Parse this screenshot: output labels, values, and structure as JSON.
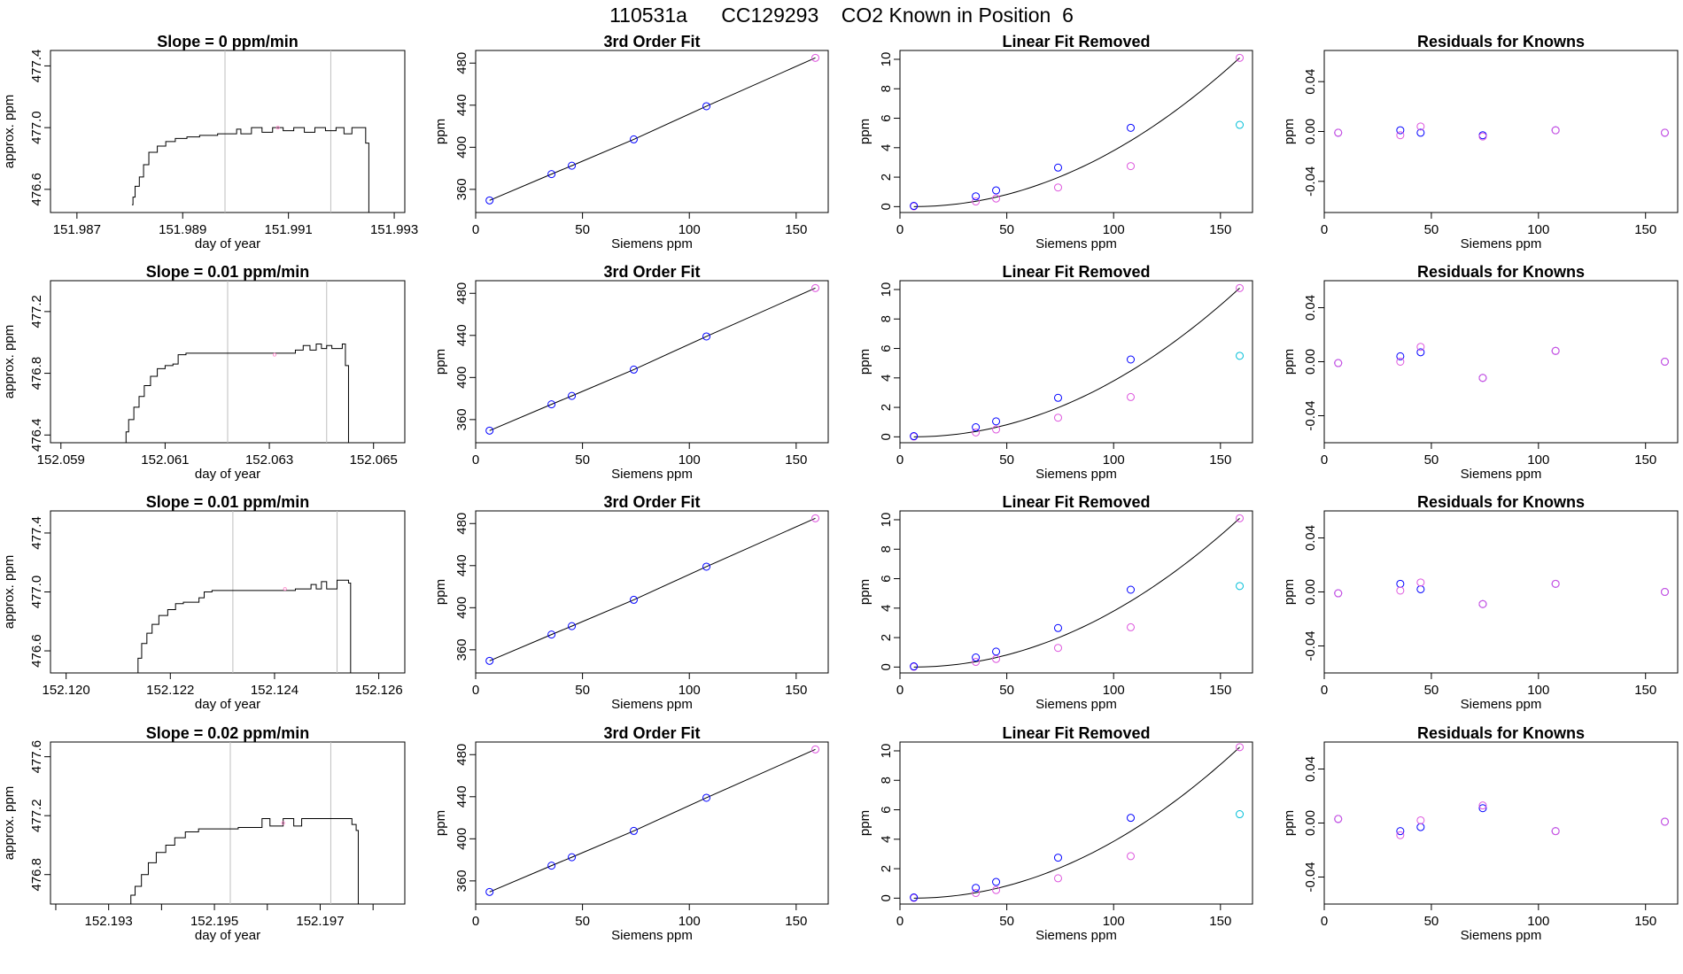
{
  "page_title": "110531a      CC129293    CO2 Known in Position  6",
  "colors": {
    "trace": "#000000",
    "vline": "#bebebe",
    "fit_line": "#000000",
    "blue": "#0000ff",
    "magenta": "#dd55dd",
    "cyan": "#00bfd8",
    "pink": "#ff88cc",
    "purple": "#8a2be2"
  },
  "chart_data": [
    {
      "type": "line",
      "panel": "time",
      "title": "Slope =  0  ppm/min",
      "xlabel": "day of year",
      "ylabel": "approx. ppm",
      "xlim": [
        151.9865,
        151.9932
      ],
      "ylim": [
        476.45,
        477.5
      ],
      "xticks": [
        151.987,
        151.989,
        151.991,
        151.993
      ],
      "xtick_labels": [
        "151.987",
        "151.989",
        "151.991",
        "151.993"
      ],
      "yticks": [
        476.6,
        477.0,
        477.4
      ],
      "ytick_labels": [
        "476.6",
        "477.0",
        "477.4"
      ],
      "vlines": [
        151.9898,
        151.9918
      ],
      "marker": [
        151.9908,
        477.0
      ],
      "x": [
        151.98804,
        151.98806,
        151.9881,
        151.98818,
        151.98826,
        151.98836,
        151.98852,
        151.98868,
        151.98886,
        151.98908,
        151.98932,
        151.98966,
        151.99002,
        151.9901,
        151.9903,
        151.9905,
        151.9907,
        151.9909,
        151.9911,
        151.9913,
        151.9915,
        151.9917,
        151.9919,
        151.99205,
        151.9922,
        151.99235,
        151.99246,
        151.99252
      ],
      "y": [
        476.5,
        476.55,
        476.62,
        476.68,
        476.76,
        476.84,
        476.88,
        476.91,
        476.93,
        476.94,
        476.95,
        476.96,
        476.99,
        476.96,
        477.0,
        476.97,
        477.0,
        476.98,
        477.0,
        476.97,
        477.0,
        476.98,
        477.0,
        476.96,
        477.0,
        477.0,
        476.9,
        476.45
      ]
    },
    {
      "type": "line",
      "panel": "time",
      "title": "Slope =  0.01  ppm/min",
      "xlabel": "day of year",
      "ylabel": "approx. ppm",
      "xlim": [
        152.0588,
        152.0656
      ],
      "ylim": [
        476.35,
        477.4
      ],
      "xticks": [
        152.059,
        152.061,
        152.063,
        152.065
      ],
      "xtick_labels": [
        "152.059",
        "152.061",
        "152.063",
        "152.065"
      ],
      "yticks": [
        476.4,
        476.8,
        477.2
      ],
      "ytick_labels": [
        "476.4",
        "476.8",
        "477.2"
      ],
      "vlines": [
        152.0622,
        152.0641
      ],
      "marker": [
        152.0631,
        476.92
      ],
      "x": [
        152.06022,
        152.06025,
        152.0603,
        152.0604,
        152.0605,
        152.0606,
        152.06072,
        152.06085,
        152.061,
        152.06115,
        152.06125,
        152.0614,
        152.062,
        152.0626,
        152.0632,
        152.0635,
        152.06365,
        152.06378,
        152.0639,
        152.064,
        152.0641,
        152.0642,
        152.0644,
        152.06446,
        152.06452
      ],
      "y": [
        476.35,
        476.42,
        476.5,
        476.58,
        476.65,
        476.72,
        476.78,
        476.83,
        476.85,
        476.86,
        476.92,
        476.93,
        476.93,
        476.93,
        476.93,
        476.95,
        476.98,
        476.95,
        476.99,
        476.96,
        476.98,
        476.96,
        476.99,
        476.85,
        476.35
      ]
    },
    {
      "type": "line",
      "panel": "time",
      "title": "Slope =  0.01  ppm/min",
      "xlabel": "day of year",
      "ylabel": "approx. ppm",
      "xlim": [
        152.1197,
        152.1265
      ],
      "ylim": [
        476.45,
        477.55
      ],
      "xticks": [
        152.12,
        152.122,
        152.124,
        152.126
      ],
      "xtick_labels": [
        "152.120",
        "152.122",
        "152.124",
        "152.126"
      ],
      "yticks": [
        476.6,
        477.0,
        477.4
      ],
      "ytick_labels": [
        "476.6",
        "477.0",
        "477.4"
      ],
      "vlines": [
        152.1232,
        152.1252
      ],
      "marker": [
        152.1242,
        477.02
      ],
      "x": [
        152.12135,
        152.12138,
        152.12145,
        152.12155,
        152.12165,
        152.12178,
        152.12195,
        152.1221,
        152.12225,
        152.12255,
        152.12265,
        152.1228,
        152.1235,
        152.1244,
        152.1247,
        152.1248,
        152.1249,
        152.125,
        152.1252,
        152.12532,
        152.12542,
        152.12546
      ],
      "y": [
        476.45,
        476.55,
        476.65,
        476.72,
        476.78,
        476.84,
        476.88,
        476.92,
        476.93,
        476.96,
        477.0,
        477.01,
        477.01,
        477.02,
        477.05,
        477.02,
        477.07,
        477.02,
        477.08,
        477.08,
        477.06,
        476.45
      ]
    },
    {
      "type": "line",
      "panel": "time",
      "title": "Slope =  0.02  ppm/min",
      "xlabel": "day of year",
      "ylabel": "approx. ppm",
      "xlim": [
        152.1919,
        152.1986
      ],
      "ylim": [
        476.6,
        477.7
      ],
      "xticks": [
        152.193,
        152.195,
        152.197
      ],
      "xtick_labels": [
        "152.193",
        "152.195",
        "152.197"
      ],
      "minor_xticks": [
        152.192,
        152.194,
        152.196,
        152.198
      ],
      "yticks": [
        476.8,
        477.2,
        477.6
      ],
      "ytick_labels": [
        "476.8",
        "477.2",
        "477.6"
      ],
      "vlines": [
        152.1953,
        152.1972
      ],
      "marker": [
        152.1963,
        477.15
      ],
      "x": [
        152.19338,
        152.19342,
        152.1935,
        152.19362,
        152.19375,
        152.1939,
        152.19408,
        152.19425,
        152.19445,
        152.1947,
        152.1951,
        152.19545,
        152.1957,
        152.1959,
        152.19605,
        152.1963,
        152.1965,
        152.19665,
        152.1969,
        152.1971,
        152.1973,
        152.19745,
        152.1976,
        152.19768,
        152.19772
      ],
      "y": [
        476.6,
        476.66,
        476.72,
        476.8,
        476.88,
        476.95,
        477.0,
        477.05,
        477.09,
        477.11,
        477.11,
        477.12,
        477.12,
        477.18,
        477.13,
        477.18,
        477.13,
        477.18,
        477.18,
        477.18,
        477.18,
        477.18,
        477.14,
        477.1,
        476.6
      ]
    },
    {
      "type": "scatter",
      "panel": "fit",
      "title": "3rd Order Fit",
      "xlabel": "Siemens ppm",
      "ylabel": "ppm",
      "xlim": [
        0,
        165
      ],
      "ylim": [
        338,
        492
      ],
      "xticks": [
        0,
        50,
        100,
        150
      ],
      "yticks": [
        360,
        400,
        440,
        480
      ],
      "points": [
        [
          6.5,
          349.5
        ],
        [
          35.5,
          374.5
        ],
        [
          45,
          382.5
        ],
        [
          74,
          407.5
        ],
        [
          108,
          439
        ],
        [
          159,
          485
        ]
      ],
      "last_point_color": "magenta"
    },
    {
      "type": "scatter",
      "panel": "fit",
      "title": "3rd Order Fit",
      "xlabel": "Siemens ppm",
      "ylabel": "ppm",
      "xlim": [
        0,
        165
      ],
      "ylim": [
        338,
        492
      ],
      "xticks": [
        0,
        50,
        100,
        150
      ],
      "yticks": [
        360,
        400,
        440,
        480
      ],
      "points": [
        [
          6.5,
          349.5
        ],
        [
          35.5,
          374.5
        ],
        [
          45,
          382.5
        ],
        [
          74,
          407.5
        ],
        [
          108,
          439
        ],
        [
          159,
          485
        ]
      ],
      "last_point_color": "magenta"
    },
    {
      "type": "scatter",
      "panel": "fit",
      "title": "3rd Order Fit",
      "xlabel": "Siemens ppm",
      "ylabel": "ppm",
      "xlim": [
        0,
        165
      ],
      "ylim": [
        338,
        492
      ],
      "xticks": [
        0,
        50,
        100,
        150
      ],
      "yticks": [
        360,
        400,
        440,
        480
      ],
      "points": [
        [
          6.5,
          349.5
        ],
        [
          35.5,
          374.5
        ],
        [
          45,
          382.5
        ],
        [
          74,
          407.5
        ],
        [
          108,
          439
        ],
        [
          159,
          485
        ]
      ],
      "last_point_color": "magenta"
    },
    {
      "type": "scatter",
      "panel": "fit",
      "title": "3rd Order Fit",
      "xlabel": "Siemens ppm",
      "ylabel": "ppm",
      "xlim": [
        0,
        165
      ],
      "ylim": [
        338,
        492
      ],
      "xticks": [
        0,
        50,
        100,
        150
      ],
      "yticks": [
        360,
        400,
        440,
        480
      ],
      "points": [
        [
          6.5,
          349.5
        ],
        [
          35.5,
          374.5
        ],
        [
          45,
          382.5
        ],
        [
          74,
          407.5
        ],
        [
          108,
          439
        ],
        [
          159,
          485
        ]
      ],
      "last_point_color": "magenta"
    },
    {
      "type": "scatter",
      "panel": "linfit",
      "title": "Linear Fit Removed",
      "xlabel": "Siemens ppm",
      "ylabel": "ppm",
      "xlim": [
        0,
        165
      ],
      "ylim": [
        -0.4,
        10.6
      ],
      "xticks": [
        0,
        50,
        100,
        150
      ],
      "yticks": [
        0,
        2,
        4,
        6,
        8,
        10
      ],
      "blue": [
        [
          6.5,
          0.05
        ],
        [
          35.5,
          0.7
        ],
        [
          45,
          1.1
        ],
        [
          74,
          2.65
        ],
        [
          108,
          5.35
        ]
      ],
      "magenta": [
        [
          6.5,
          0.02
        ],
        [
          35.5,
          0.35
        ],
        [
          45,
          0.55
        ],
        [
          74,
          1.3
        ],
        [
          108,
          2.75
        ],
        [
          159,
          10.1
        ]
      ],
      "cyan": [
        [
          159,
          5.55
        ]
      ],
      "curve_end": [
        159,
        10.1
      ]
    },
    {
      "type": "scatter",
      "panel": "linfit",
      "title": "Linear Fit Removed",
      "xlabel": "Siemens ppm",
      "ylabel": "ppm",
      "xlim": [
        0,
        165
      ],
      "ylim": [
        -0.4,
        10.6
      ],
      "xticks": [
        0,
        50,
        100,
        150
      ],
      "yticks": [
        0,
        2,
        4,
        6,
        8,
        10
      ],
      "blue": [
        [
          6.5,
          0.05
        ],
        [
          35.5,
          0.65
        ],
        [
          45,
          1.05
        ],
        [
          74,
          2.65
        ],
        [
          108,
          5.25
        ]
      ],
      "magenta": [
        [
          6.5,
          0.02
        ],
        [
          35.5,
          0.3
        ],
        [
          45,
          0.5
        ],
        [
          74,
          1.3
        ],
        [
          108,
          2.7
        ],
        [
          159,
          10.1
        ]
      ],
      "cyan": [
        [
          159,
          5.5
        ]
      ],
      "curve_end": [
        159,
        10.1
      ]
    },
    {
      "type": "scatter",
      "panel": "linfit",
      "title": "Linear Fit Removed",
      "xlabel": "Siemens ppm",
      "ylabel": "ppm",
      "xlim": [
        0,
        165
      ],
      "ylim": [
        -0.4,
        10.6
      ],
      "xticks": [
        0,
        50,
        100,
        150
      ],
      "yticks": [
        0,
        2,
        4,
        6,
        8,
        10
      ],
      "blue": [
        [
          6.5,
          0.05
        ],
        [
          35.5,
          0.65
        ],
        [
          45,
          1.05
        ],
        [
          74,
          2.65
        ],
        [
          108,
          5.25
        ]
      ],
      "magenta": [
        [
          6.5,
          0.02
        ],
        [
          35.5,
          0.35
        ],
        [
          45,
          0.55
        ],
        [
          74,
          1.3
        ],
        [
          108,
          2.7
        ],
        [
          159,
          10.1
        ]
      ],
      "cyan": [
        [
          159,
          5.5
        ]
      ],
      "curve_end": [
        159,
        10.1
      ]
    },
    {
      "type": "scatter",
      "panel": "linfit",
      "title": "Linear Fit Removed",
      "xlabel": "Siemens ppm",
      "ylabel": "ppm",
      "xlim": [
        0,
        165
      ],
      "ylim": [
        -0.4,
        10.6
      ],
      "xticks": [
        0,
        50,
        100,
        150
      ],
      "yticks": [
        0,
        2,
        4,
        6,
        8,
        10
      ],
      "blue": [
        [
          6.5,
          0.05
        ],
        [
          35.5,
          0.7
        ],
        [
          45,
          1.1
        ],
        [
          74,
          2.75
        ],
        [
          108,
          5.45
        ]
      ],
      "magenta": [
        [
          6.5,
          0.02
        ],
        [
          35.5,
          0.35
        ],
        [
          45,
          0.55
        ],
        [
          74,
          1.35
        ],
        [
          108,
          2.85
        ],
        [
          159,
          10.25
        ]
      ],
      "cyan": [
        [
          159,
          5.7
        ]
      ],
      "curve_end": [
        159,
        10.25
      ]
    },
    {
      "type": "scatter",
      "panel": "resid",
      "title": "Residuals for Knowns",
      "xlabel": "Siemens ppm",
      "ylabel": "ppm",
      "xlim": [
        0,
        165
      ],
      "ylim": [
        -0.065,
        0.065
      ],
      "xticks": [
        0,
        50,
        100,
        150
      ],
      "yticks": [
        -0.04,
        0.0,
        0.04
      ],
      "blue": [
        [
          6.5,
          -0.001
        ],
        [
          35.5,
          0.001
        ],
        [
          45,
          -0.001
        ],
        [
          74,
          -0.003
        ],
        [
          108,
          0.001
        ],
        [
          159,
          -0.001
        ]
      ],
      "magenta": [
        [
          6.5,
          -0.001
        ],
        [
          35.5,
          -0.003
        ],
        [
          45,
          0.004
        ],
        [
          74,
          -0.004
        ],
        [
          108,
          0.001
        ],
        [
          159,
          -0.001
        ]
      ]
    },
    {
      "type": "scatter",
      "panel": "resid",
      "title": "Residuals for Knowns",
      "xlabel": "Siemens ppm",
      "ylabel": "ppm",
      "xlim": [
        0,
        165
      ],
      "ylim": [
        -0.06,
        0.06
      ],
      "xticks": [
        0,
        50,
        100,
        150
      ],
      "yticks": [
        -0.04,
        0.0,
        0.04
      ],
      "blue": [
        [
          6.5,
          -0.001
        ],
        [
          35.5,
          0.004
        ],
        [
          45,
          0.007
        ],
        [
          74,
          -0.012
        ],
        [
          108,
          0.008
        ],
        [
          159,
          0.0
        ]
      ],
      "magenta": [
        [
          6.5,
          -0.001
        ],
        [
          35.5,
          0.0
        ],
        [
          45,
          0.011
        ],
        [
          74,
          -0.012
        ],
        [
          108,
          0.008
        ],
        [
          159,
          0.0
        ]
      ]
    },
    {
      "type": "scatter",
      "panel": "resid",
      "title": "Residuals for Knowns",
      "xlabel": "Siemens ppm",
      "ylabel": "ppm",
      "xlim": [
        0,
        165
      ],
      "ylim": [
        -0.06,
        0.06
      ],
      "xticks": [
        0,
        50,
        100,
        150
      ],
      "yticks": [
        -0.04,
        0.0,
        0.04
      ],
      "blue": [
        [
          6.5,
          -0.001
        ],
        [
          35.5,
          0.006
        ],
        [
          45,
          0.002
        ],
        [
          74,
          -0.009
        ],
        [
          108,
          0.006
        ],
        [
          159,
          0.0
        ]
      ],
      "magenta": [
        [
          6.5,
          -0.001
        ],
        [
          35.5,
          0.001
        ],
        [
          45,
          0.007
        ],
        [
          74,
          -0.009
        ],
        [
          108,
          0.006
        ],
        [
          159,
          0.0
        ]
      ]
    },
    {
      "type": "scatter",
      "panel": "resid",
      "title": "Residuals for Knowns",
      "xlabel": "Siemens ppm",
      "ylabel": "ppm",
      "xlim": [
        0,
        165
      ],
      "ylim": [
        -0.06,
        0.06
      ],
      "xticks": [
        0,
        50,
        100,
        150
      ],
      "yticks": [
        -0.04,
        0.0,
        0.04
      ],
      "blue": [
        [
          6.5,
          0.003
        ],
        [
          35.5,
          -0.006
        ],
        [
          45,
          -0.003
        ],
        [
          74,
          0.011
        ],
        [
          108,
          -0.006
        ],
        [
          159,
          0.001
        ]
      ],
      "magenta": [
        [
          6.5,
          0.003
        ],
        [
          35.5,
          -0.009
        ],
        [
          45,
          0.002
        ],
        [
          74,
          0.013
        ],
        [
          108,
          -0.006
        ],
        [
          159,
          0.001
        ]
      ]
    }
  ]
}
